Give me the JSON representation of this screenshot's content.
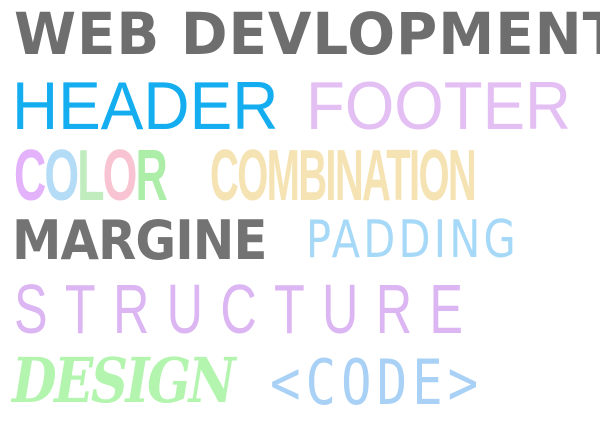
{
  "words": {
    "web_development": {
      "text": "WEB DEVLOPMENT",
      "color": "#6e6e6e"
    },
    "header": {
      "text": "HEADER",
      "color": "#14aef0"
    },
    "footer": {
      "text": "FOOTER",
      "color": "#e3bff3"
    },
    "color_word": {
      "letters": [
        {
          "text": "C",
          "color": "#e3b2fa"
        },
        {
          "text": "O",
          "color": "#b5dcf6"
        },
        {
          "text": "L",
          "color": "#c0ecbe"
        },
        {
          "text": "O",
          "color": "#f9c4d2"
        },
        {
          "text": "R",
          "color": "#aceda8"
        }
      ]
    },
    "combination": {
      "text": "COMBINATION",
      "color": "#f5e3b4"
    },
    "margine": {
      "text": "MARGINE",
      "color": "#737373"
    },
    "padding": {
      "text": "PADDING",
      "color": "#a6d9f7"
    },
    "structure": {
      "text": "STRUCTURE",
      "color": "#dcb6f2"
    },
    "design": {
      "text": "DESIGN",
      "color": "#b3f5ae"
    },
    "code": {
      "text": "<CODE>",
      "color": "#a9d1f6"
    }
  }
}
